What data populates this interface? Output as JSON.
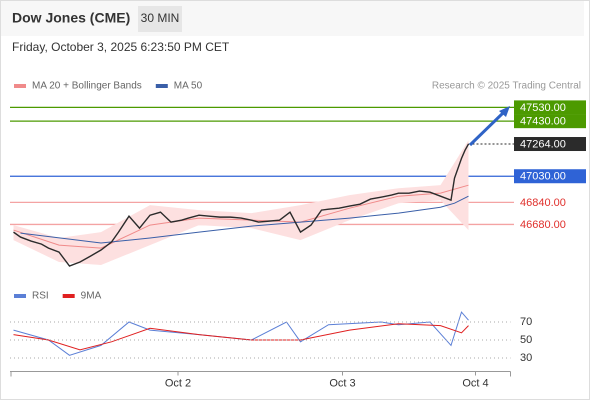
{
  "header": {
    "title": "Dow Jones (CME)",
    "interval": "30 MIN",
    "datetime": "Friday, October 3, 2025 6:23:50 PM CET",
    "credit": "Research © 2025 Trading Central"
  },
  "chart_data": [
    {
      "type": "line",
      "ylim": [
        46240,
        47620
      ],
      "xlim": [
        0,
        143
      ],
      "price": {
        "color": "#2b2b2b",
        "x": [
          1,
          3,
          6,
          9,
          11,
          14,
          17,
          20,
          23,
          26,
          29,
          31,
          34,
          37,
          40,
          43,
          46,
          49,
          51,
          54,
          57,
          60,
          63,
          66,
          69,
          71,
          74,
          77,
          80,
          83,
          86,
          89,
          91,
          94,
          97,
          100,
          103,
          106,
          109,
          111,
          114,
          117,
          120,
          123,
          126,
          127,
          129,
          130,
          131
        ],
        "values": [
          46624,
          46588,
          46559,
          46537,
          46508,
          46479,
          46378,
          46407,
          46450,
          46494,
          46552,
          46624,
          46740,
          46653,
          46747,
          46769,
          46697,
          46711,
          46726,
          46747,
          46740,
          46733,
          46733,
          46726,
          46711,
          46697,
          46704,
          46711,
          46769,
          46624,
          46675,
          46784,
          46791,
          46798,
          46813,
          46827,
          46864,
          46878,
          46893,
          46907,
          46907,
          46922,
          46914,
          46885,
          46856,
          47016,
          47160,
          47218,
          47264
        ]
      },
      "series": [
        {
          "name": "MA 20 + Bollinger Bands",
          "color": "#f08a8a",
          "band_color": "#fde0e0",
          "x": [
            1,
            14,
            26,
            40,
            54,
            69,
            83,
            97,
            111,
            123,
            131
          ],
          "values": [
            46639,
            46530,
            46508,
            46675,
            46726,
            46711,
            46697,
            46798,
            46885,
            46907,
            46965
          ],
          "upper": [
            46675,
            46581,
            46624,
            46820,
            46784,
            46762,
            46820,
            46893,
            46943,
            46965,
            47291
          ],
          "lower": [
            46566,
            46407,
            46385,
            46530,
            46675,
            46653,
            46566,
            46711,
            46834,
            46856,
            46639
          ]
        },
        {
          "name": "MA 50",
          "color": "#3a5fa8",
          "x": [
            3,
            26,
            40,
            54,
            69,
            83,
            97,
            111,
            123,
            127,
            131
          ],
          "values": [
            46617,
            46545,
            46581,
            46624,
            46668,
            46697,
            46726,
            46762,
            46805,
            46834,
            46885
          ]
        }
      ],
      "levels": [
        {
          "value": 47530,
          "label": "47530.00",
          "color": "#4c9a00",
          "style": "solid"
        },
        {
          "value": 47430,
          "label": "47430.00",
          "color": "#4c9a00",
          "style": "solid"
        },
        {
          "value": 47264,
          "label": "47264.00",
          "color": "#2b2b2b",
          "style": "dotted"
        },
        {
          "value": 47030,
          "label": "47030.00",
          "color": "#2f63d6",
          "style": "solid"
        },
        {
          "value": 46840,
          "label": "46840.00",
          "color": "#f4a3a3",
          "text_color": "#e0302c",
          "style": "solid"
        },
        {
          "value": 46680,
          "label": "46680.00",
          "color": "#f4a3a3",
          "text_color": "#e0302c",
          "style": "solid"
        }
      ]
    },
    {
      "type": "line",
      "ylim": [
        15,
        90
      ],
      "xlim": [
        0,
        143
      ],
      "yticks": [
        30,
        50,
        70
      ],
      "xticks": [
        {
          "value": 48,
          "label": "Oct 2"
        },
        {
          "value": 95,
          "label": "Oct 3"
        },
        {
          "value": 133,
          "label": "Oct 4"
        }
      ],
      "series": [
        {
          "name": "RSI",
          "color": "#5b7fd6",
          "x": [
            1,
            11,
            17,
            26,
            34,
            40,
            54,
            69,
            79,
            83,
            91,
            106,
            111,
            120,
            126,
            129,
            131
          ],
          "values": [
            61,
            50,
            33,
            44,
            70,
            61,
            56,
            50,
            70,
            48,
            67,
            70,
            67,
            70,
            44,
            81,
            72
          ]
        },
        {
          "name": "9MA",
          "color": "#e02020",
          "x": [
            1,
            11,
            20,
            29,
            40,
            54,
            69,
            83,
            97,
            111,
            123,
            129,
            131
          ],
          "values": [
            56,
            50,
            39,
            48,
            63,
            56,
            50,
            50,
            61,
            68,
            66,
            58,
            66
          ]
        }
      ]
    }
  ]
}
